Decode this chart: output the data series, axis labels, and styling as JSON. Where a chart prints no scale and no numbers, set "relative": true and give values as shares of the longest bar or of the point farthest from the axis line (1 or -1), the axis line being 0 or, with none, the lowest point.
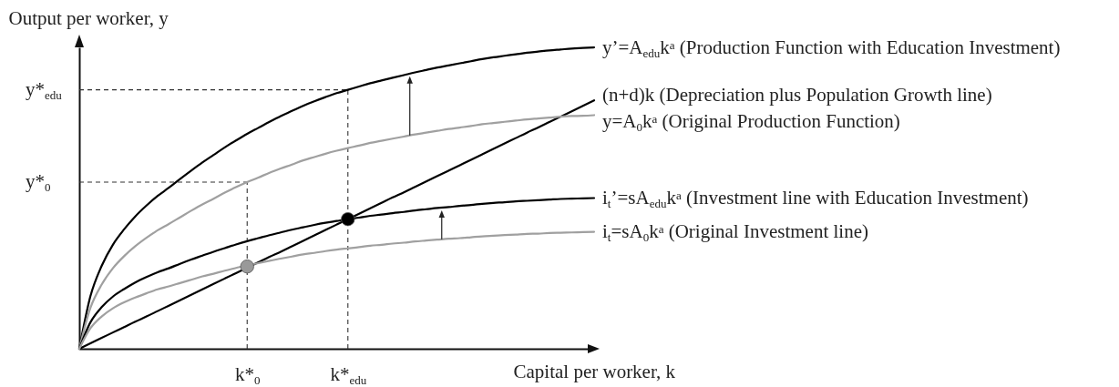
{
  "chart_data": {
    "type": "line",
    "relative": true,
    "xlabel": "Capital per worker, k",
    "ylabel": "Output per worker, y",
    "categories": [
      null,
      null,
      null,
      null,
      null,
      null,
      null,
      null,
      null,
      null,
      null,
      null,
      null,
      null,
      null,
      "k*$_{0}$",
      null,
      null,
      null,
      null,
      null,
      null,
      null,
      null,
      "k*$_{edu}$",
      null,
      null,
      null,
      null,
      null,
      null,
      null,
      null,
      null,
      null,
      null,
      null,
      null,
      null,
      null,
      null,
      null,
      null,
      null,
      null,
      null,
      null
    ],
    "series": [
      {
        "name": "y’=A$_{edu}$k$^{a}$ (Production Function with Education Investment)",
        "color": "#000000",
        "values": [
          0,
          0.175,
          0.275,
          0.345,
          0.396,
          0.439,
          0.475,
          0.507,
          0.534,
          0.563,
          0.591,
          0.618,
          0.643,
          0.668,
          0.691,
          0.713,
          0.733,
          0.753,
          0.772,
          0.789,
          0.806,
          0.821,
          0.835,
          0.848,
          0.859,
          0.87,
          0.881,
          0.89,
          0.899,
          0.908,
          0.917,
          0.925,
          0.933,
          0.94,
          0.947,
          0.954,
          0.961,
          0.967,
          0.972,
          0.977,
          0.982,
          0.986,
          0.99,
          0.993,
          0.996,
          0.998,
          1
        ]
      },
      {
        "name": "(n+d)k (Depreciation plus Population Growth line)",
        "color": "#000000",
        "values": [
          0,
          0.018,
          0.036,
          0.054,
          0.072,
          0.09,
          0.107,
          0.125,
          0.143,
          0.161,
          0.179,
          0.197,
          0.215,
          0.233,
          0.251,
          0.269,
          0.287,
          0.305,
          0.322,
          0.34,
          0.358,
          0.376,
          0.394,
          0.412,
          0.43,
          0.448,
          0.466,
          0.484,
          0.502,
          0.519,
          0.537,
          0.555,
          0.573,
          0.591,
          0.609,
          0.627,
          0.645,
          0.663,
          0.681,
          0.699,
          0.717,
          0.734,
          0.752,
          0.77,
          0.788,
          0.806,
          0.824
        ]
      },
      {
        "name": "y=A$_{0}$k$^{a}$ (Original Production Function)",
        "color": "#a0a0a0",
        "values": [
          0,
          0.136,
          0.213,
          0.267,
          0.307,
          0.34,
          0.368,
          0.393,
          0.414,
          0.436,
          0.458,
          0.479,
          0.498,
          0.518,
          0.536,
          0.553,
          0.568,
          0.584,
          0.598,
          0.611,
          0.625,
          0.636,
          0.647,
          0.657,
          0.666,
          0.674,
          0.683,
          0.69,
          0.697,
          0.704,
          0.711,
          0.717,
          0.723,
          0.729,
          0.734,
          0.739,
          0.745,
          0.749,
          0.753,
          0.757,
          0.761,
          0.764,
          0.767,
          0.77,
          0.772,
          0.773,
          0.775
        ]
      },
      {
        "name": "i$_{t}$’=sA$_{edu}$k$^{a}$ (Investment line with Education Investment)",
        "color": "#000000",
        "values": [
          0,
          0.088,
          0.138,
          0.173,
          0.198,
          0.22,
          0.238,
          0.254,
          0.267,
          0.282,
          0.296,
          0.309,
          0.322,
          0.334,
          0.346,
          0.357,
          0.367,
          0.377,
          0.386,
          0.395,
          0.403,
          0.411,
          0.418,
          0.424,
          0.43,
          0.435,
          0.441,
          0.445,
          0.45,
          0.454,
          0.459,
          0.463,
          0.467,
          0.47,
          0.474,
          0.477,
          0.481,
          0.484,
          0.486,
          0.489,
          0.491,
          0.493,
          0.495,
          0.497,
          0.498,
          0.499,
          0.5
        ]
      },
      {
        "name": "i$_{t}$=sA$_{0}$k$^{a}$ (Original Investment line)",
        "color": "#a0a0a0",
        "values": [
          0,
          0.068,
          0.107,
          0.134,
          0.154,
          0.17,
          0.184,
          0.197,
          0.207,
          0.218,
          0.229,
          0.24,
          0.249,
          0.259,
          0.268,
          0.277,
          0.284,
          0.292,
          0.299,
          0.306,
          0.313,
          0.318,
          0.324,
          0.329,
          0.333,
          0.337,
          0.342,
          0.345,
          0.349,
          0.352,
          0.356,
          0.359,
          0.362,
          0.365,
          0.367,
          0.37,
          0.373,
          0.375,
          0.377,
          0.379,
          0.381,
          0.382,
          0.384,
          0.385,
          0.386,
          0.387,
          0.388
        ]
      },
      {
        "type": "scatter",
        "marker": "circle",
        "color": "#000000",
        "values": [
          null,
          null,
          null,
          null,
          null,
          null,
          null,
          null,
          null,
          null,
          null,
          null,
          null,
          null,
          null,
          null,
          null,
          null,
          null,
          null,
          null,
          null,
          null,
          null,
          0.43,
          null,
          null,
          null,
          null,
          null,
          null,
          null,
          null,
          null,
          null,
          null,
          null,
          null,
          null,
          null,
          null,
          null,
          null,
          null,
          null,
          null,
          null
        ]
      },
      {
        "type": "scatter",
        "marker": "circle",
        "color": "#999999",
        "values": [
          null,
          null,
          null,
          null,
          null,
          null,
          null,
          null,
          null,
          null,
          null,
          null,
          null,
          null,
          null,
          0.273,
          null,
          null,
          null,
          null,
          null,
          null,
          null,
          null,
          null,
          null,
          null,
          null,
          null,
          null,
          null,
          null,
          null,
          null,
          null,
          null,
          null,
          null,
          null,
          null,
          null,
          null,
          null,
          null,
          null,
          null,
          null
        ]
      }
    ],
    "ref_lines": [
      {
        "axis": "x",
        "value": "k*$_{0}$",
        "color": "#333333",
        "line_style": "dashed"
      },
      {
        "axis": "x",
        "value": "k*$_{edu}$",
        "color": "#333333",
        "line_style": "dashed"
      },
      {
        "axis": "y",
        "value": 0.553,
        "label": "y*$_{0}$",
        "color": "#333333",
        "line_style": "dashed"
      },
      {
        "axis": "y",
        "value": 0.859,
        "label": "y*$_{edu}$",
        "color": "#333333",
        "line_style": "dashed"
      }
    ]
  }
}
